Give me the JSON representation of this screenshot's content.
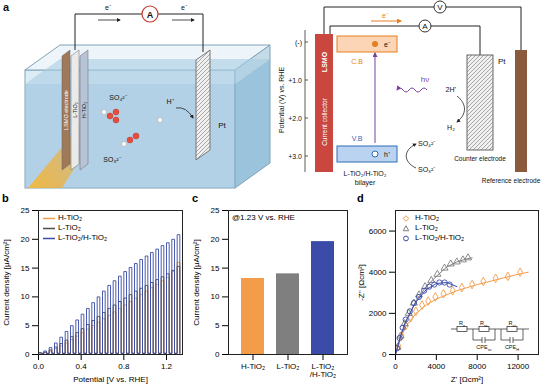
{
  "diagram": {
    "panel_labels": [
      "a",
      "b",
      "c",
      "d"
    ],
    "schematic": {
      "ammeter": "A",
      "electron_left": "e⁻",
      "electron_right": "e⁻",
      "electrode_layers": [
        "LSMO electrode",
        "L-TiO₂",
        "H-TiO₂"
      ],
      "ions": [
        "SO₄²⁻",
        "SO₃²⁻",
        "H⁺"
      ],
      "counter": "Pt"
    },
    "energy_diagram": {
      "voltmeter": "V",
      "ammeter": "A",
      "electron": "e⁻",
      "axis_label": "Potential (V) vs. RHE",
      "axis_ticks": [
        "(-)",
        "+1.0",
        "+2.0",
        "+3.0"
      ],
      "collector": [
        "LSMO",
        "Current collector"
      ],
      "conduction_band": "C.B",
      "valence_band": "V.B",
      "carrier_electron": "e⁻",
      "carrier_hole": "h⁺",
      "photon": "hν",
      "oxidation": [
        "SO₄²⁻",
        "SO₃²⁻"
      ],
      "bilayer": [
        "L-TiO₂/H-TiO₂",
        "bilayer"
      ],
      "counter": "Pt",
      "reduction": [
        "2H⁺",
        "H₂"
      ],
      "counter_label": "Counter electrode",
      "reference_label": "Reference electrode"
    }
  },
  "chart_data": [
    {
      "type": "line",
      "xlabel": "Potential [V vs. RHE]",
      "ylabel": "Current density [μA/cm²]",
      "xlim": [
        0,
        1.35
      ],
      "xticks": [
        {
          "value": 0,
          "label": "0.0"
        },
        0.4,
        0.8,
        1.2
      ],
      "ylim": [
        0,
        25
      ],
      "yticks": [
        0,
        5,
        10,
        15,
        20,
        25
      ],
      "legend": "top-left",
      "x": [
        0,
        0,
        0.025,
        0.025,
        0.05,
        0.05,
        0.075,
        0.075,
        0.1,
        0.1,
        0.125,
        0.125,
        0.15,
        0.15,
        0.175,
        0.175,
        0.2,
        0.2,
        0.225,
        0.225,
        0.25,
        0.25,
        0.275,
        0.275,
        0.3,
        0.3,
        0.325,
        0.325,
        0.35,
        0.35,
        0.375,
        0.375,
        0.4,
        0.4,
        0.425,
        0.425,
        0.45,
        0.45,
        0.475,
        0.475,
        0.5,
        0.5,
        0.525,
        0.525,
        0.55,
        0.55,
        0.575,
        0.575,
        0.6,
        0.6,
        0.625,
        0.625,
        0.65,
        0.65,
        0.675,
        0.675,
        0.7,
        0.7,
        0.725,
        0.725,
        0.75,
        0.75,
        0.775,
        0.775,
        0.8,
        0.8,
        0.825,
        0.825,
        0.85,
        0.85,
        0.875,
        0.875,
        0.9,
        0.9,
        0.925,
        0.925,
        0.95,
        0.95,
        0.975,
        0.975,
        1.0,
        1.0,
        1.025,
        1.025,
        1.05,
        1.05,
        1.075,
        1.075,
        1.1,
        1.1,
        1.125,
        1.125,
        1.15,
        1.15,
        1.175,
        1.175,
        1.2,
        1.2,
        1.225,
        1.225,
        1.25,
        1.25,
        1.275,
        1.275,
        1.3,
        1.3,
        1.325,
        1.325
      ],
      "series": [
        {
          "name": "H-TiO₂",
          "color": "#f39c4a",
          "values": [
            0.2,
            0.25,
            0.25,
            0.2,
            0.2,
            0.3,
            0.3,
            0.2,
            0.2,
            0.6,
            0.6,
            0.2,
            0.2,
            1.0,
            1.0,
            0.2,
            0.2,
            1.5,
            1.5,
            0.2,
            0.2,
            2.0,
            2.0,
            0.2,
            0.2,
            2.6,
            2.6,
            0.2,
            0.2,
            3.2,
            3.2,
            0.2,
            0.2,
            3.8,
            3.8,
            0.2,
            0.2,
            4.4,
            4.4,
            0.2,
            0.2,
            5.0,
            5.0,
            0.2,
            0.2,
            5.6,
            5.6,
            0.2,
            0.2,
            6.2,
            6.2,
            0.2,
            0.2,
            6.8,
            6.8,
            0.2,
            0.2,
            7.4,
            7.4,
            0.2,
            0.2,
            8.0,
            8.0,
            0.2,
            0.2,
            8.6,
            8.6,
            0.2,
            0.2,
            9.2,
            9.2,
            0.2,
            0.2,
            9.8,
            9.8,
            0.2,
            0.2,
            10.4,
            10.4,
            0.2,
            0.2,
            11.0,
            11.0,
            0.2,
            0.2,
            11.6,
            11.6,
            0.2,
            0.2,
            12.2,
            12.2,
            0.2,
            0.2,
            12.8,
            12.8,
            0.2,
            0.2,
            13.4,
            13.4,
            0.2,
            0.2,
            14.4,
            14.4,
            0.2,
            0.2,
            16.0,
            16.0,
            0.2
          ]
        },
        {
          "name": "L-TiO₂",
          "color": "#4d4d4d",
          "values": [
            0.2,
            0.3,
            0.3,
            0.2,
            0.2,
            0.4,
            0.4,
            0.2,
            0.2,
            0.8,
            0.8,
            0.2,
            0.2,
            1.3,
            1.3,
            0.2,
            0.2,
            1.9,
            1.9,
            0.2,
            0.2,
            2.5,
            2.5,
            0.2,
            0.2,
            3.1,
            3.1,
            0.2,
            0.2,
            3.8,
            3.8,
            0.2,
            0.2,
            4.5,
            4.5,
            0.2,
            0.2,
            5.2,
            5.2,
            0.2,
            0.2,
            5.9,
            5.9,
            0.2,
            0.2,
            6.6,
            6.6,
            0.2,
            0.2,
            7.3,
            7.3,
            0.2,
            0.2,
            8.0,
            8.0,
            0.2,
            0.2,
            8.6,
            8.6,
            0.2,
            0.2,
            9.2,
            9.2,
            0.2,
            0.2,
            9.8,
            9.8,
            0.2,
            0.2,
            10.4,
            10.4,
            0.2,
            0.2,
            11.0,
            11.0,
            0.2,
            0.2,
            11.5,
            11.5,
            0.2,
            0.2,
            12.0,
            12.0,
            0.2,
            0.2,
            12.5,
            12.5,
            0.2,
            0.2,
            13.0,
            13.0,
            0.2,
            0.2,
            13.5,
            13.5,
            0.2,
            0.2,
            14.0,
            14.0,
            0.2,
            0.2,
            14.6,
            14.6,
            0.2,
            0.2,
            15.3,
            15.3,
            0.2
          ]
        },
        {
          "name": "L-TiO₂/H-TiO₂",
          "color": "#3b4ba8",
          "values": [
            0.2,
            0.3,
            0.3,
            0.2,
            0.2,
            0.6,
            0.6,
            0.2,
            0.2,
            1.2,
            1.2,
            0.2,
            0.2,
            2.0,
            2.0,
            0.2,
            0.2,
            3.0,
            3.0,
            0.2,
            0.2,
            4.0,
            4.0,
            0.2,
            0.2,
            5.0,
            5.0,
            0.2,
            0.2,
            6.0,
            6.0,
            0.2,
            0.2,
            7.0,
            7.0,
            0.2,
            0.2,
            8.0,
            8.0,
            0.2,
            0.2,
            9.0,
            9.0,
            0.2,
            0.2,
            10.0,
            10.0,
            0.2,
            0.2,
            11.0,
            11.0,
            0.2,
            0.2,
            12.0,
            12.0,
            0.2,
            0.2,
            12.8,
            12.8,
            0.2,
            0.2,
            13.6,
            13.6,
            0.2,
            0.2,
            14.4,
            14.4,
            0.2,
            0.2,
            15.1,
            15.1,
            0.2,
            0.2,
            15.8,
            15.8,
            0.2,
            0.2,
            16.5,
            16.5,
            0.2,
            0.2,
            17.1,
            17.1,
            0.2,
            0.2,
            17.7,
            17.7,
            0.2,
            0.2,
            18.3,
            18.3,
            0.2,
            0.2,
            18.9,
            18.9,
            0.2,
            0.2,
            19.4,
            19.4,
            0.2,
            0.2,
            20.0,
            20.0,
            0.2,
            0.2,
            20.8,
            20.8,
            0.2
          ]
        }
      ]
    },
    {
      "type": "bar",
      "ylabel": "Current density [μA/cm²]",
      "annotation": "@1.23 V vs. RHE",
      "categories": [
        "H-TiO₂",
        "L-TiO₂",
        "L-TiO₂\n/H-TiO₂"
      ],
      "values": [
        13.2,
        14.0,
        19.6
      ],
      "colors": [
        "#f39c4a",
        "#7f7f7f",
        "#3b4ba8"
      ],
      "ylim": [
        0,
        25
      ],
      "yticks": [
        0,
        5,
        10,
        15,
        20,
        25
      ]
    },
    {
      "type": "scatter",
      "xlabel": "Z' [Ωcm²]",
      "ylabel": "-Z'' [Ωcm²]",
      "xlim": [
        0,
        14000
      ],
      "xticks": [
        0,
        4000,
        8000,
        12000
      ],
      "ylim": [
        0,
        7000
      ],
      "yticks": [
        0,
        2000,
        4000,
        6000
      ],
      "legend": "top-left",
      "annotations": [
        {
          "main": "R",
          "sub": "s"
        },
        {
          "main": "R",
          "sub": "sc"
        },
        {
          "main": "CPE",
          "sub": "sc"
        },
        {
          "main": "R",
          "sub": "ct"
        },
        {
          "main": "CPE",
          "sub": "H"
        }
      ],
      "series": [
        {
          "name": "H-TiO₂",
          "color": "#f39c4a",
          "marker": "diamond",
          "x": [
            300,
            600,
            1000,
            1500,
            2000,
            2600,
            3200,
            3900,
            4700,
            5600,
            6500,
            7500,
            8600,
            9800,
            11000,
            12200
          ],
          "values": [
            400,
            900,
            1400,
            1800,
            2100,
            2400,
            2600,
            2800,
            2950,
            3100,
            3250,
            3400,
            3550,
            3700,
            3800,
            4000
          ],
          "fit": {
            "x": [
              0,
              500,
              1000,
              2000,
              3000,
              4000,
              6000,
              8000,
              10000,
              12000,
              13000
            ],
            "values": [
              0,
              800,
              1350,
              2000,
              2400,
              2700,
              3100,
              3400,
              3650,
              3900,
              4000
            ]
          }
        },
        {
          "name": "L-TiO₂",
          "color": "#7f7f7f",
          "marker": "triangle",
          "x": [
            200,
            500,
            900,
            1300,
            1800,
            2300,
            2900,
            3500,
            4100,
            4800,
            5400,
            6000,
            6600,
            7100
          ],
          "values": [
            350,
            900,
            1500,
            2000,
            2500,
            2900,
            3300,
            3600,
            3900,
            4200,
            4400,
            4500,
            4600,
            4700
          ],
          "fit": {
            "x": [
              0,
              500,
              1000,
              2000,
              3000,
              4000,
              5000,
              6000,
              7000,
              7500
            ],
            "values": [
              0,
              900,
              1600,
              2600,
              3300,
              3800,
              4250,
              4500,
              4650,
              4700
            ]
          }
        },
        {
          "name": "L-TiO₂/H-TiO₂",
          "color": "#3b4ba8",
          "marker": "circle",
          "x": [
            150,
            400,
            700,
            1000,
            1400,
            1800,
            2300,
            2800,
            3300,
            3800,
            4300,
            4800,
            5300
          ],
          "values": [
            300,
            800,
            1300,
            1700,
            2100,
            2500,
            2800,
            3100,
            3300,
            3400,
            3500,
            3500,
            3400
          ],
          "fit": {
            "x": [
              0,
              500,
              1000,
              2000,
              3000,
              4000,
              5000,
              6000
            ],
            "values": [
              0,
              900,
              1600,
              2550,
              3150,
              3450,
              3500,
              3300
            ]
          }
        }
      ]
    }
  ]
}
